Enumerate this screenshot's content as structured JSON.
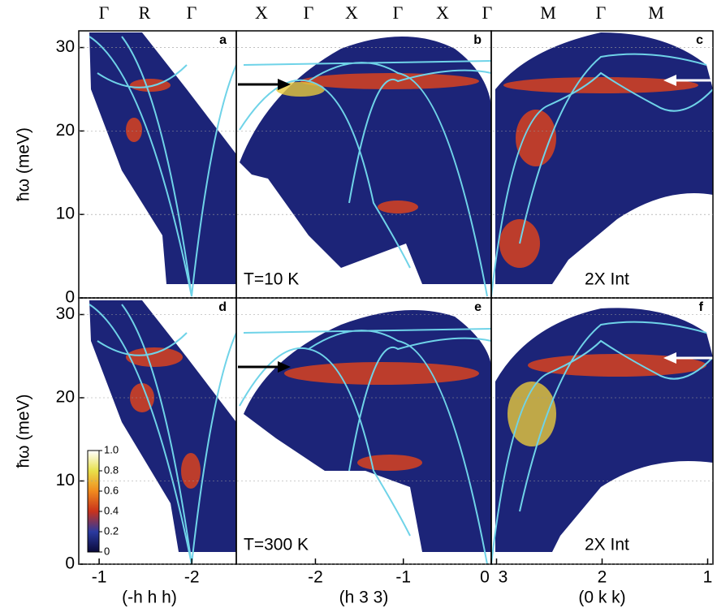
{
  "figure": {
    "columns": [
      {
        "xlabel": "(-h h h)",
        "xlim": [
          -0.78,
          -2.48
        ],
        "xticks": [
          -1,
          -2
        ],
        "points": [
          "Γ",
          "R",
          "Γ"
        ]
      },
      {
        "xlabel": "(h 3 3)",
        "xlim": [
          -2.9,
          0
        ],
        "xticks": [
          -2,
          -1,
          0
        ],
        "points": [
          "X",
          "Γ",
          "X",
          "Γ",
          "X",
          "Γ"
        ]
      },
      {
        "xlabel": "(0 k k)",
        "xlim": [
          3.05,
          0.95
        ],
        "xticks": [
          3,
          2,
          1
        ],
        "points": [
          "M",
          "Γ",
          "M"
        ]
      }
    ],
    "rows": [
      {
        "ylabel": "ħω (meV)",
        "ylim": [
          0,
          32
        ],
        "yticks": [
          0,
          10,
          20,
          30
        ]
      },
      {
        "ylabel": "ħω (meV)",
        "ylim": [
          0,
          32
        ],
        "yticks": [
          0,
          10,
          20,
          30
        ]
      }
    ],
    "panels": [
      "a",
      "b",
      "c",
      "d",
      "e",
      "f"
    ],
    "annotations": [
      "T=10 K",
      "2X Int",
      "T=300 K",
      "2X Int"
    ],
    "colorbar": {
      "ticks": [
        {
          "value": 1,
          "label": "1.0"
        },
        0.8,
        0.6,
        0.4,
        0.2,
        0
      ]
    }
  }
}
